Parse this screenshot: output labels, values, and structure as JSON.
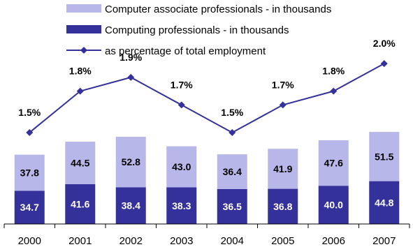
{
  "chart_data": {
    "type": "bar",
    "stacked": true,
    "categories": [
      "2000",
      "2001",
      "2002",
      "2003",
      "2004",
      "2005",
      "2006",
      "2007"
    ],
    "series": [
      {
        "name": "Computing professionals - in thousands",
        "type": "bar",
        "color": "#35319a",
        "values": [
          34.7,
          41.6,
          38.4,
          38.3,
          36.5,
          36.8,
          40.0,
          44.8
        ]
      },
      {
        "name": "Computer associate professionals - in thousands",
        "type": "bar",
        "color": "#b8b7ea",
        "values": [
          37.8,
          44.5,
          52.8,
          43.0,
          36.4,
          41.9,
          47.6,
          51.5
        ]
      },
      {
        "name": "as percentage of total employment",
        "type": "line",
        "color": "#35319a",
        "values": [
          1.5,
          1.8,
          1.9,
          1.7,
          1.5,
          1.7,
          1.8,
          2.0
        ],
        "labels": [
          "1.5%",
          "1.8%",
          "1.9%",
          "1.7%",
          "1.5%",
          "1.7%",
          "1.8%",
          "2.0%"
        ]
      }
    ],
    "bar_labels": {
      "dark": [
        "34.7",
        "41.6",
        "38.4",
        "38.3",
        "36.5",
        "36.8",
        "40.0",
        "44.8"
      ],
      "light": [
        "37.8",
        "44.5",
        "52.8",
        "43.0",
        "36.4",
        "41.9",
        "47.6",
        "51.5"
      ]
    },
    "legend": {
      "position": "top",
      "items": [
        {
          "label": "Computer associate professionals - in thousands",
          "symbol": "light-bar"
        },
        {
          "label": "Computing professionals - in thousands",
          "symbol": "dark-bar"
        },
        {
          "label": "as percentage of total employment",
          "symbol": "line-diamond"
        }
      ]
    },
    "ylim": [
      0,
      110
    ],
    "line_ylim": [
      0.64,
      2.4
    ],
    "grid": false,
    "title": "",
    "xlabel": "",
    "ylabel": ""
  }
}
